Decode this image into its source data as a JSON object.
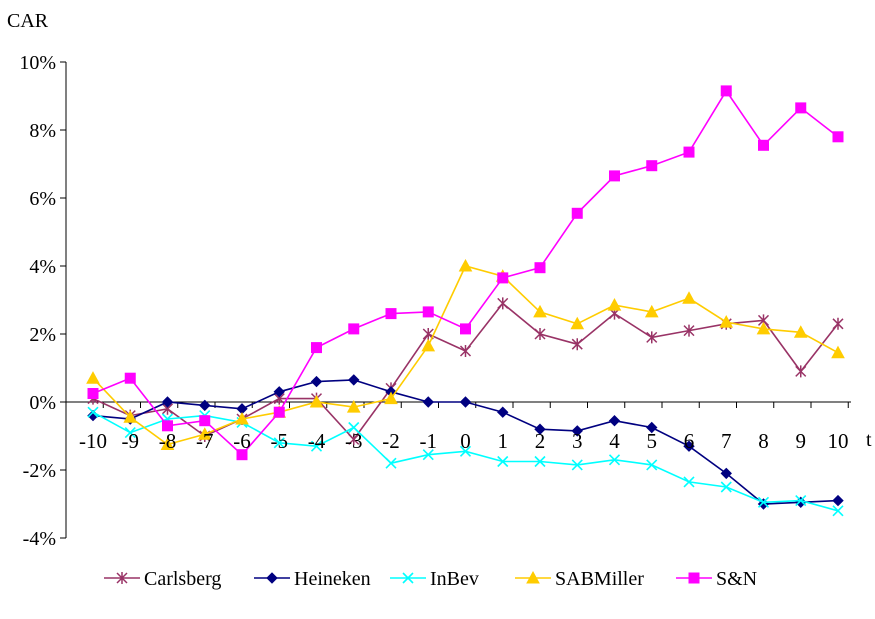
{
  "chart_data": {
    "type": "line",
    "ylabel": "CAR",
    "xlabel": "t",
    "x": [
      -10,
      -9,
      -8,
      -7,
      -6,
      -5,
      -4,
      -3,
      -2,
      -1,
      0,
      1,
      2,
      3,
      4,
      5,
      6,
      7,
      8,
      9,
      10
    ],
    "x_tick_labels": [
      "-10",
      "-9",
      "-8",
      "-7",
      "-6",
      "-5",
      "-4",
      "-3",
      "-2",
      "-1",
      "0",
      "1",
      "2",
      "3",
      "4",
      "5",
      "6",
      "7",
      "8",
      "9",
      "10"
    ],
    "ylim": [
      -4,
      10
    ],
    "y_ticks": [
      10,
      8,
      6,
      4,
      2,
      0,
      -2,
      -4
    ],
    "y_tick_labels": [
      "10%",
      "8%",
      "6%",
      "4%",
      "2%",
      "0%",
      "-2%",
      "-4%"
    ],
    "legend_position": "bottom",
    "series": [
      {
        "name": "Carlsberg",
        "color": "#993366",
        "marker": "star",
        "values": [
          0.1,
          -0.4,
          -0.2,
          -1.0,
          -0.5,
          0.1,
          0.1,
          -1.1,
          0.4,
          2.0,
          1.5,
          2.9,
          2.0,
          1.7,
          2.6,
          1.9,
          2.1,
          2.3,
          2.4,
          0.9,
          2.3
        ]
      },
      {
        "name": "Heineken",
        "color": "#000080",
        "marker": "diamond",
        "values": [
          -0.4,
          -0.5,
          0.0,
          -0.1,
          -0.2,
          0.3,
          0.6,
          0.65,
          0.3,
          0.0,
          0.0,
          -0.3,
          -0.8,
          -0.85,
          -0.55,
          -0.75,
          -1.3,
          -2.1,
          -3.0,
          -2.95,
          -2.9
        ]
      },
      {
        "name": "InBev",
        "color": "#00FFFF",
        "marker": "x",
        "values": [
          -0.3,
          -0.9,
          -0.5,
          -0.4,
          -0.6,
          -1.2,
          -1.3,
          -0.75,
          -1.8,
          -1.55,
          -1.45,
          -1.75,
          -1.75,
          -1.85,
          -1.7,
          -1.85,
          -2.35,
          -2.5,
          -2.95,
          -2.9,
          -3.2
        ]
      },
      {
        "name": "SABMiller",
        "color": "#FFCC00",
        "marker": "triangle",
        "values": [
          0.7,
          -0.45,
          -1.25,
          -0.95,
          -0.5,
          -0.3,
          0.0,
          -0.15,
          0.1,
          1.65,
          4.0,
          3.7,
          2.65,
          2.3,
          2.85,
          2.65,
          3.05,
          2.35,
          2.15,
          2.05,
          1.45
        ]
      },
      {
        "name": "S&N",
        "color": "#FF00FF",
        "marker": "square",
        "values": [
          0.25,
          0.7,
          -0.7,
          -0.55,
          -1.55,
          -0.3,
          1.6,
          2.15,
          2.6,
          2.65,
          2.15,
          3.65,
          3.95,
          5.55,
          6.65,
          6.95,
          7.35,
          9.15,
          7.55,
          8.65,
          7.8
        ]
      }
    ]
  }
}
